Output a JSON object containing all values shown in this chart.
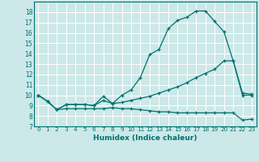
{
  "title": "",
  "xlabel": "Humidex (Indice chaleur)",
  "bg_color": "#cce8e8",
  "grid_color": "#ffffff",
  "line_color": "#007070",
  "xlim": [
    -0.5,
    23.5
  ],
  "ylim": [
    7,
    19
  ],
  "yticks": [
    7,
    8,
    9,
    10,
    11,
    12,
    13,
    14,
    15,
    16,
    17,
    18
  ],
  "xticks": [
    0,
    1,
    2,
    3,
    4,
    5,
    6,
    7,
    8,
    9,
    10,
    11,
    12,
    13,
    14,
    15,
    16,
    17,
    18,
    19,
    20,
    21,
    22,
    23
  ],
  "series": [
    {
      "x": [
        0,
        1,
        2,
        3,
        4,
        5,
        6,
        7,
        8,
        9,
        10,
        11,
        12,
        13,
        14,
        15,
        16,
        17,
        18,
        19,
        20,
        21,
        22,
        23
      ],
      "y": [
        10,
        9.4,
        8.6,
        9.1,
        9.1,
        9.1,
        9.0,
        9.9,
        9.2,
        10.0,
        10.5,
        11.7,
        13.9,
        14.4,
        16.4,
        17.2,
        17.5,
        18.1,
        18.1,
        17.1,
        16.1,
        13.3,
        10.2,
        10.1
      ]
    },
    {
      "x": [
        0,
        1,
        2,
        3,
        4,
        5,
        6,
        7,
        8,
        9,
        10,
        11,
        12,
        13,
        14,
        15,
        16,
        17,
        18,
        19,
        20,
        21,
        22,
        23
      ],
      "y": [
        10,
        9.4,
        8.6,
        9.1,
        9.1,
        9.1,
        9.0,
        9.5,
        9.2,
        9.3,
        9.5,
        9.7,
        9.9,
        10.2,
        10.5,
        10.8,
        11.2,
        11.7,
        12.1,
        12.5,
        13.3,
        13.3,
        10.0,
        10.0
      ]
    },
    {
      "x": [
        0,
        1,
        2,
        3,
        4,
        5,
        6,
        7,
        8,
        9,
        10,
        11,
        12,
        13,
        14,
        15,
        16,
        17,
        18,
        19,
        20,
        21,
        22,
        23
      ],
      "y": [
        10,
        9.4,
        8.6,
        8.7,
        8.7,
        8.7,
        8.7,
        8.7,
        8.8,
        8.7,
        8.7,
        8.6,
        8.5,
        8.4,
        8.4,
        8.3,
        8.3,
        8.3,
        8.3,
        8.3,
        8.3,
        8.3,
        7.6,
        7.7
      ]
    }
  ]
}
